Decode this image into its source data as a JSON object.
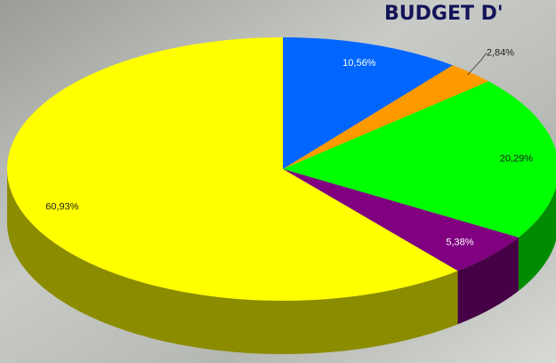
{
  "chart_data": {
    "type": "pie",
    "title": "BUDGET D'",
    "categories": [
      null,
      null,
      null,
      null,
      null
    ],
    "values": [
      10.56,
      2.84,
      20.29,
      5.38,
      60.93
    ],
    "value_labels": [
      "10,56%",
      "2,84%",
      "20,29%",
      "5,38%",
      "60,93%"
    ],
    "colors": [
      "#0066ff",
      "#ff9900",
      "#00ff00",
      "#800080",
      "#ffff00"
    ]
  }
}
